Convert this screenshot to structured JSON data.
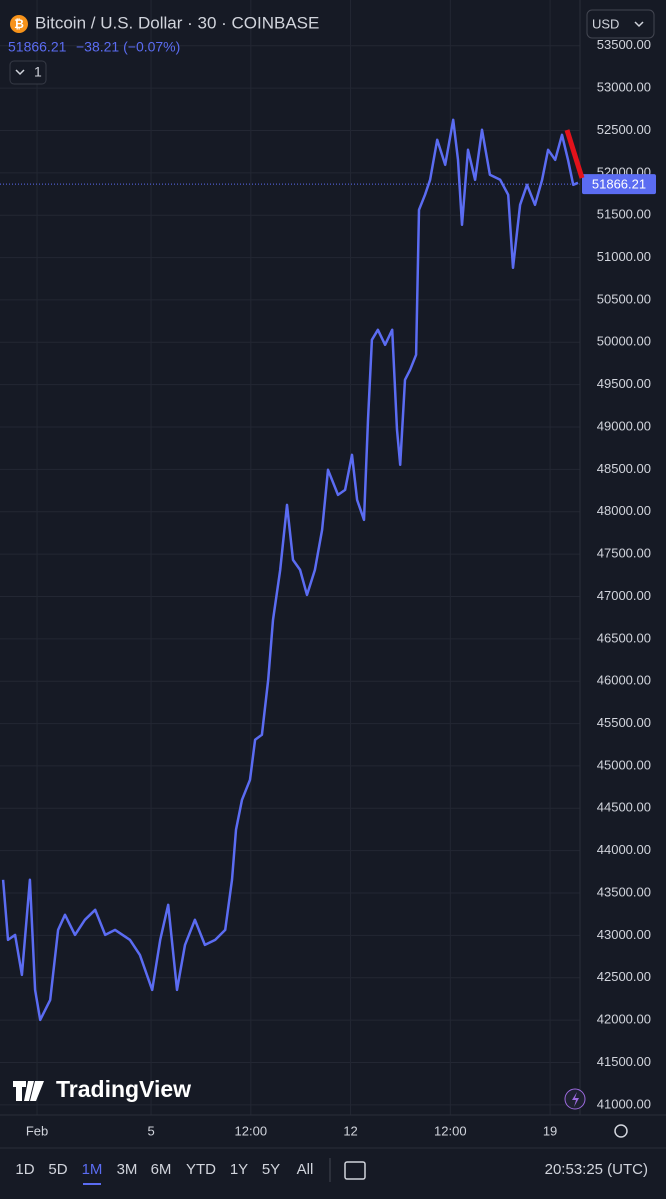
{
  "chart_data": {
    "type": "line",
    "title": "Bitcoin / U.S. Dollar · 30 · COINBASE",
    "change": "−38.21 (−0.07%)",
    "last_price": 51866.21,
    "color": "#5b6cf2",
    "x": [
      -1.19,
      -1.02,
      -0.77,
      -0.53,
      -0.25,
      -0.07,
      0.11,
      0.46,
      0.74,
      0.98,
      1.33,
      1.68,
      2.04,
      2.39,
      2.74,
      3.26,
      3.61,
      4.04,
      4.32,
      4.6,
      4.91,
      5.19,
      5.54,
      5.89,
      6.25,
      6.6,
      6.84,
      6.98,
      7.19,
      7.47,
      7.65,
      7.89,
      8.11,
      8.28,
      8.53,
      8.77,
      8.98,
      9.23,
      9.47,
      9.75,
      10.0,
      10.21,
      10.56,
      10.81,
      11.05,
      11.23,
      11.47,
      11.61,
      11.75,
      11.96,
      12.21,
      12.46,
      12.63,
      12.74,
      12.91,
      13.09,
      13.3,
      13.4,
      13.61,
      13.79,
      14.04,
      14.32,
      14.6,
      14.77,
      14.91,
      15.12,
      15.37,
      15.61,
      15.89,
      16.25,
      16.53,
      16.7,
      16.95,
      17.19,
      17.47,
      17.72,
      17.93,
      18.18,
      18.42,
      18.63,
      18.81,
      18.98
    ],
    "values": [
      43656,
      42947,
      43006,
      42534,
      43656,
      42357,
      42003,
      42239,
      43065,
      43243,
      43006,
      43184,
      43302,
      43006,
      43065,
      42947,
      42770,
      42357,
      42947,
      43361,
      42357,
      42888,
      43184,
      42888,
      42947,
      43065,
      43656,
      44246,
      44600,
      44836,
      45308,
      45367,
      46016,
      46724,
      47314,
      48081,
      47432,
      47314,
      47019,
      47314,
      47786,
      48495,
      48199,
      48258,
      48672,
      48140,
      47905,
      49085,
      50029,
      50147,
      49970,
      50147,
      48967,
      48554,
      49557,
      49675,
      49852,
      51564,
      51741,
      51918,
      52390,
      52095,
      52626,
      52154,
      51387,
      52272,
      51918,
      52508,
      51977,
      51918,
      51741,
      50879,
      51623,
      51859,
      51623,
      51918,
      52272,
      52154,
      52449,
      52154,
      51859,
      51883
    ],
    "xlim": [
      -1.3,
      19.05
    ],
    "xticks": [
      {
        "value": 0,
        "label": "Feb"
      },
      {
        "value": 4,
        "label": "5"
      },
      {
        "value": 7.5,
        "label": "12:00"
      },
      {
        "value": 11,
        "label": "12"
      },
      {
        "value": 14.5,
        "label": "12:00"
      },
      {
        "value": 18,
        "label": "19"
      }
    ],
    "ylim": [
      40880,
      54040
    ],
    "yticks": [
      {
        "value": 41000,
        "label": "41000.00"
      },
      {
        "value": 41500,
        "label": "41500.00"
      },
      {
        "value": 42000,
        "label": "42000.00"
      },
      {
        "value": 42500,
        "label": "42500.00"
      },
      {
        "value": 43000,
        "label": "43000.00"
      },
      {
        "value": 43500,
        "label": "43500.00"
      },
      {
        "value": 44000,
        "label": "44000.00"
      },
      {
        "value": 44500,
        "label": "44500.00"
      },
      {
        "value": 45000,
        "label": "45000.00"
      },
      {
        "value": 45500,
        "label": "45500.00"
      },
      {
        "value": 46000,
        "label": "46000.00"
      },
      {
        "value": 46500,
        "label": "46500.00"
      },
      {
        "value": 47000,
        "label": "47000.00"
      },
      {
        "value": 47500,
        "label": "47500.00"
      },
      {
        "value": 48000,
        "label": "48000.00"
      },
      {
        "value": 48500,
        "label": "48500.00"
      },
      {
        "value": 49000,
        "label": "49000.00"
      },
      {
        "value": 49500,
        "label": "49500.00"
      },
      {
        "value": 50000,
        "label": "50000.00"
      },
      {
        "value": 50500,
        "label": "50500.00"
      },
      {
        "value": 51000,
        "label": "51000.00"
      },
      {
        "value": 51500,
        "label": "51500.00"
      },
      {
        "value": 52000,
        "label": "52000.00"
      },
      {
        "value": 52500,
        "label": "52500.00"
      },
      {
        "value": 53000,
        "label": "53000.00"
      },
      {
        "value": 53500,
        "label": "53500.00"
      }
    ],
    "grid": true
  },
  "ui": {
    "indicator_count": "1",
    "currency": "USD",
    "logo": "TradingView",
    "ranges": [
      "1D",
      "5D",
      "1M",
      "3M",
      "6M",
      "YTD",
      "1Y",
      "5Y",
      "All"
    ],
    "active_range": "1M",
    "clock": "20:53:25 (UTC)"
  }
}
